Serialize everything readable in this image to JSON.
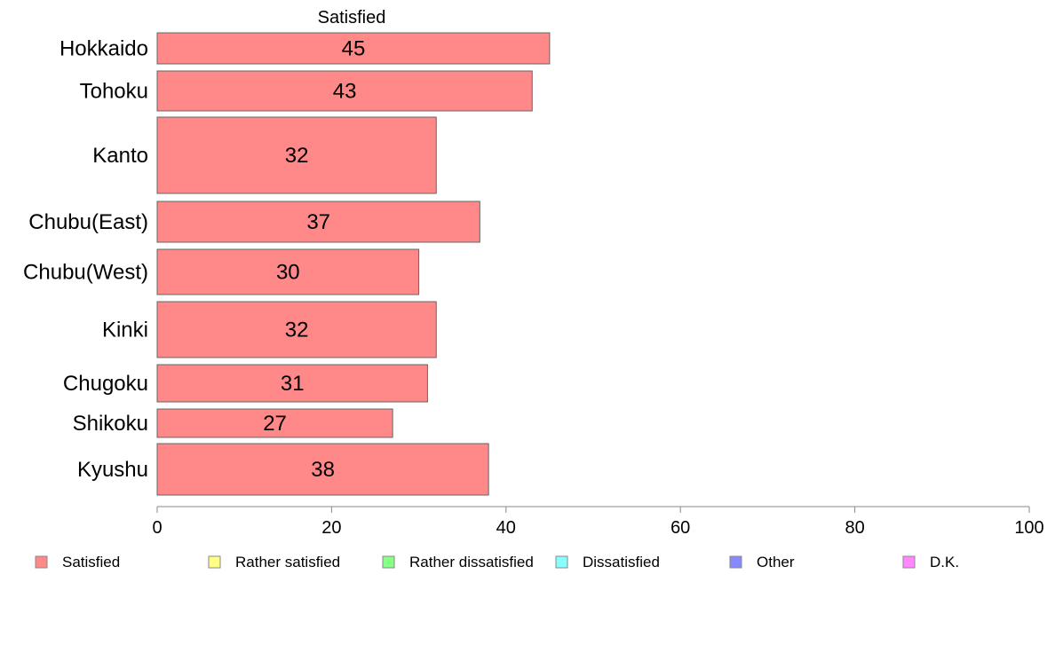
{
  "chart_data": {
    "type": "bar",
    "orientation": "horizontal",
    "title": "Satisfied",
    "xlabel": "",
    "ylabel": "",
    "categories": [
      "Hokkaido",
      "Tohoku",
      "Kanto",
      "Chubu(East)",
      "Chubu(West)",
      "Kinki",
      "Chugoku",
      "Shikoku",
      "Kyushu"
    ],
    "series": [
      {
        "name": "Satisfied",
        "values": [
          45,
          43,
          32,
          37,
          30,
          32,
          31,
          27,
          38
        ],
        "color": "#ff8888"
      }
    ],
    "value_labels": [
      "45",
      "43",
      "32",
      "37",
      "30",
      "32",
      "31",
      "27",
      "38"
    ],
    "xlim": [
      0,
      100
    ],
    "xticks": [
      0,
      20,
      40,
      60,
      80,
      100
    ],
    "xtick_labels": [
      "0",
      "20",
      "40",
      "60",
      "80",
      "100"
    ],
    "grid": false,
    "legend_position": "bottom",
    "legend": [
      {
        "label": "Satisfied",
        "color": "#ff8888"
      },
      {
        "label": "Rather satisfied",
        "color": "#ffff88"
      },
      {
        "label": "Rather dissatisfied",
        "color": "#88ff88"
      },
      {
        "label": "Dissatisfied",
        "color": "#88ffff"
      },
      {
        "label": "Other",
        "color": "#8888ff"
      },
      {
        "label": "D.K.",
        "color": "#ff88ff"
      }
    ]
  }
}
